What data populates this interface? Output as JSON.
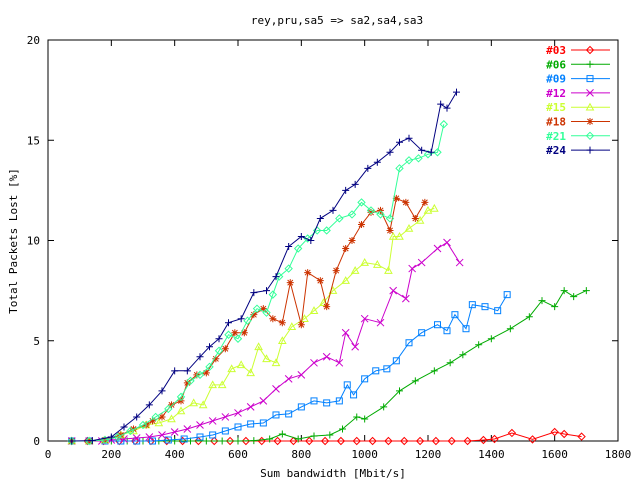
{
  "chart_data": {
    "type": "line",
    "title": "rey,pru,sa5 => sa2,sa4,sa3",
    "xlabel": "Sum bandwidth [Mbit/s]",
    "ylabel": "Total Packets Lost [%]",
    "xlim": [
      0,
      1800
    ],
    "ylim": [
      0,
      20
    ],
    "xticks": [
      0,
      200,
      400,
      600,
      800,
      1000,
      1200,
      1400,
      1600,
      1800
    ],
    "yticks": [
      0,
      5,
      10,
      15,
      20
    ],
    "grid": false,
    "legend_position": "top-right",
    "series": [
      {
        "name": "#03",
        "color": "#ff0000",
        "marker": "diamond",
        "points": [
          [
            75,
            0
          ],
          [
            125,
            0
          ],
          [
            175,
            0
          ],
          [
            225,
            0
          ],
          [
            275,
            0
          ],
          [
            325,
            0
          ],
          [
            375,
            0
          ],
          [
            425,
            0
          ],
          [
            475,
            0
          ],
          [
            525,
            0
          ],
          [
            575,
            0
          ],
          [
            625,
            0
          ],
          [
            675,
            0
          ],
          [
            725,
            0
          ],
          [
            775,
            0
          ],
          [
            825,
            0
          ],
          [
            875,
            0
          ],
          [
            925,
            0
          ],
          [
            975,
            0
          ],
          [
            1025,
            0
          ],
          [
            1075,
            0
          ],
          [
            1125,
            0
          ],
          [
            1175,
            0
          ],
          [
            1225,
            0
          ],
          [
            1275,
            0
          ],
          [
            1325,
            0
          ],
          [
            1375,
            0.05
          ],
          [
            1410,
            0.1
          ],
          [
            1465,
            0.4
          ],
          [
            1530,
            0.08
          ],
          [
            1600,
            0.45
          ],
          [
            1630,
            0.35
          ],
          [
            1685,
            0.22
          ]
        ]
      },
      {
        "name": "#06",
        "color": "#00aa00",
        "marker": "plus",
        "points": [
          [
            75,
            0
          ],
          [
            140,
            0
          ],
          [
            200,
            0
          ],
          [
            250,
            0
          ],
          [
            300,
            0
          ],
          [
            350,
            0
          ],
          [
            400,
            0
          ],
          [
            450,
            0
          ],
          [
            500,
            0
          ],
          [
            550,
            0
          ],
          [
            600,
            0
          ],
          [
            650,
            0.02
          ],
          [
            700,
            0.1
          ],
          [
            740,
            0.35
          ],
          [
            790,
            0.1
          ],
          [
            840,
            0.25
          ],
          [
            890,
            0.3
          ],
          [
            930,
            0.6
          ],
          [
            975,
            1.2
          ],
          [
            1000,
            1.1
          ],
          [
            1060,
            1.7
          ],
          [
            1110,
            2.5
          ],
          [
            1160,
            3.0
          ],
          [
            1220,
            3.5
          ],
          [
            1270,
            3.9
          ],
          [
            1310,
            4.3
          ],
          [
            1360,
            4.8
          ],
          [
            1400,
            5.1
          ],
          [
            1460,
            5.6
          ],
          [
            1520,
            6.2
          ],
          [
            1560,
            7.0
          ],
          [
            1600,
            6.7
          ],
          [
            1630,
            7.5
          ],
          [
            1660,
            7.2
          ],
          [
            1700,
            7.5
          ]
        ]
      },
      {
        "name": "#09",
        "color": "#0080ff",
        "marker": "square",
        "points": [
          [
            75,
            0
          ],
          [
            130,
            0
          ],
          [
            180,
            0
          ],
          [
            230,
            0
          ],
          [
            280,
            0
          ],
          [
            330,
            0
          ],
          [
            380,
            0.05
          ],
          [
            430,
            0.1
          ],
          [
            480,
            0.2
          ],
          [
            520,
            0.3
          ],
          [
            560,
            0.5
          ],
          [
            600,
            0.7
          ],
          [
            640,
            0.85
          ],
          [
            680,
            0.9
          ],
          [
            720,
            1.3
          ],
          [
            760,
            1.35
          ],
          [
            800,
            1.7
          ],
          [
            840,
            2.0
          ],
          [
            880,
            1.9
          ],
          [
            920,
            2.0
          ],
          [
            945,
            2.8
          ],
          [
            965,
            2.3
          ],
          [
            1000,
            3.1
          ],
          [
            1035,
            3.5
          ],
          [
            1070,
            3.6
          ],
          [
            1100,
            4.0
          ],
          [
            1140,
            4.9
          ],
          [
            1180,
            5.4
          ],
          [
            1230,
            5.8
          ],
          [
            1260,
            5.5
          ],
          [
            1285,
            6.3
          ],
          [
            1320,
            5.6
          ],
          [
            1340,
            6.8
          ],
          [
            1380,
            6.7
          ],
          [
            1420,
            6.5
          ],
          [
            1450,
            7.3
          ]
        ]
      },
      {
        "name": "#12",
        "color": "#cc00cc",
        "marker": "x",
        "points": [
          [
            75,
            0
          ],
          [
            130,
            0
          ],
          [
            170,
            0
          ],
          [
            200,
            0.05
          ],
          [
            240,
            0.1
          ],
          [
            280,
            0.15
          ],
          [
            320,
            0.2
          ],
          [
            360,
            0.3
          ],
          [
            400,
            0.45
          ],
          [
            440,
            0.6
          ],
          [
            480,
            0.8
          ],
          [
            520,
            1.0
          ],
          [
            560,
            1.2
          ],
          [
            600,
            1.4
          ],
          [
            640,
            1.7
          ],
          [
            680,
            2.0
          ],
          [
            720,
            2.6
          ],
          [
            760,
            3.1
          ],
          [
            800,
            3.3
          ],
          [
            840,
            3.9
          ],
          [
            880,
            4.2
          ],
          [
            920,
            3.9
          ],
          [
            940,
            5.4
          ],
          [
            970,
            4.7
          ],
          [
            1000,
            6.1
          ],
          [
            1050,
            5.9
          ],
          [
            1090,
            7.5
          ],
          [
            1130,
            7.1
          ],
          [
            1150,
            8.6
          ],
          [
            1180,
            8.9
          ],
          [
            1230,
            9.6
          ],
          [
            1260,
            9.9
          ],
          [
            1300,
            8.9
          ]
        ]
      },
      {
        "name": "#15",
        "color": "#ccff33",
        "marker": "triangle",
        "points": [
          [
            75,
            0
          ],
          [
            130,
            0
          ],
          [
            180,
            0.05
          ],
          [
            230,
            0.3
          ],
          [
            270,
            0.5
          ],
          [
            310,
            0.8
          ],
          [
            350,
            0.9
          ],
          [
            390,
            1.1
          ],
          [
            420,
            1.5
          ],
          [
            460,
            1.9
          ],
          [
            490,
            1.8
          ],
          [
            520,
            2.8
          ],
          [
            550,
            2.8
          ],
          [
            580,
            3.6
          ],
          [
            610,
            3.8
          ],
          [
            640,
            3.4
          ],
          [
            665,
            4.7
          ],
          [
            690,
            4.1
          ],
          [
            720,
            3.9
          ],
          [
            740,
            5.0
          ],
          [
            770,
            5.7
          ],
          [
            810,
            6.1
          ],
          [
            840,
            6.5
          ],
          [
            870,
            6.9
          ],
          [
            900,
            7.5
          ],
          [
            940,
            8.0
          ],
          [
            970,
            8.5
          ],
          [
            1000,
            8.9
          ],
          [
            1040,
            8.8
          ],
          [
            1075,
            8.5
          ],
          [
            1090,
            10.2
          ],
          [
            1110,
            10.2
          ],
          [
            1140,
            10.6
          ],
          [
            1175,
            11.0
          ],
          [
            1200,
            11.5
          ],
          [
            1220,
            11.6
          ]
        ]
      },
      {
        "name": "#18",
        "color": "#cc3300",
        "marker": "star",
        "points": [
          [
            75,
            0
          ],
          [
            130,
            0
          ],
          [
            180,
            0.05
          ],
          [
            230,
            0.3
          ],
          [
            270,
            0.6
          ],
          [
            310,
            0.8
          ],
          [
            330,
            1.0
          ],
          [
            360,
            1.2
          ],
          [
            390,
            1.8
          ],
          [
            420,
            2.0
          ],
          [
            440,
            2.9
          ],
          [
            470,
            3.3
          ],
          [
            500,
            3.4
          ],
          [
            530,
            4.1
          ],
          [
            560,
            4.6
          ],
          [
            590,
            5.4
          ],
          [
            620,
            5.4
          ],
          [
            650,
            6.3
          ],
          [
            680,
            6.6
          ],
          [
            710,
            6.1
          ],
          [
            740,
            5.9
          ],
          [
            765,
            7.9
          ],
          [
            800,
            5.8
          ],
          [
            820,
            8.4
          ],
          [
            860,
            8.0
          ],
          [
            880,
            6.7
          ],
          [
            910,
            8.5
          ],
          [
            940,
            9.6
          ],
          [
            960,
            10.0
          ],
          [
            990,
            10.8
          ],
          [
            1020,
            11.4
          ],
          [
            1050,
            11.5
          ],
          [
            1080,
            10.5
          ],
          [
            1100,
            12.1
          ],
          [
            1130,
            11.9
          ],
          [
            1160,
            11.1
          ],
          [
            1190,
            11.9
          ]
        ]
      },
      {
        "name": "#21",
        "color": "#33ff99",
        "marker": "diamond",
        "points": [
          [
            75,
            0
          ],
          [
            130,
            0
          ],
          [
            180,
            0.05
          ],
          [
            220,
            0.2
          ],
          [
            260,
            0.5
          ],
          [
            300,
            0.8
          ],
          [
            340,
            1.2
          ],
          [
            380,
            1.6
          ],
          [
            420,
            2.2
          ],
          [
            450,
            3.0
          ],
          [
            480,
            3.3
          ],
          [
            510,
            3.7
          ],
          [
            540,
            4.5
          ],
          [
            570,
            5.3
          ],
          [
            600,
            5.1
          ],
          [
            630,
            6.0
          ],
          [
            660,
            6.6
          ],
          [
            690,
            6.4
          ],
          [
            710,
            7.3
          ],
          [
            730,
            8.2
          ],
          [
            760,
            8.6
          ],
          [
            790,
            9.6
          ],
          [
            820,
            10.1
          ],
          [
            850,
            10.5
          ],
          [
            880,
            10.5
          ],
          [
            920,
            11.1
          ],
          [
            960,
            11.3
          ],
          [
            990,
            11.9
          ],
          [
            1020,
            11.5
          ],
          [
            1050,
            11.3
          ],
          [
            1080,
            11.1
          ],
          [
            1110,
            13.6
          ],
          [
            1140,
            14.0
          ],
          [
            1170,
            14.1
          ],
          [
            1200,
            14.3
          ],
          [
            1230,
            14.4
          ],
          [
            1250,
            15.8
          ]
        ]
      },
      {
        "name": "#24",
        "color": "#000080",
        "marker": "plus",
        "points": [
          [
            75,
            0
          ],
          [
            140,
            0.02
          ],
          [
            200,
            0.2
          ],
          [
            240,
            0.7
          ],
          [
            280,
            1.2
          ],
          [
            320,
            1.8
          ],
          [
            360,
            2.5
          ],
          [
            400,
            3.5
          ],
          [
            440,
            3.5
          ],
          [
            480,
            4.2
          ],
          [
            510,
            4.7
          ],
          [
            540,
            5.1
          ],
          [
            570,
            5.9
          ],
          [
            610,
            6.1
          ],
          [
            650,
            7.4
          ],
          [
            690,
            7.5
          ],
          [
            720,
            8.2
          ],
          [
            760,
            9.7
          ],
          [
            800,
            10.2
          ],
          [
            830,
            10.0
          ],
          [
            860,
            11.1
          ],
          [
            900,
            11.5
          ],
          [
            940,
            12.5
          ],
          [
            970,
            12.8
          ],
          [
            1010,
            13.6
          ],
          [
            1040,
            13.9
          ],
          [
            1080,
            14.4
          ],
          [
            1110,
            14.9
          ],
          [
            1140,
            15.1
          ],
          [
            1180,
            14.5
          ],
          [
            1210,
            14.4
          ],
          [
            1240,
            16.8
          ],
          [
            1260,
            16.6
          ],
          [
            1290,
            17.4
          ]
        ]
      }
    ]
  }
}
